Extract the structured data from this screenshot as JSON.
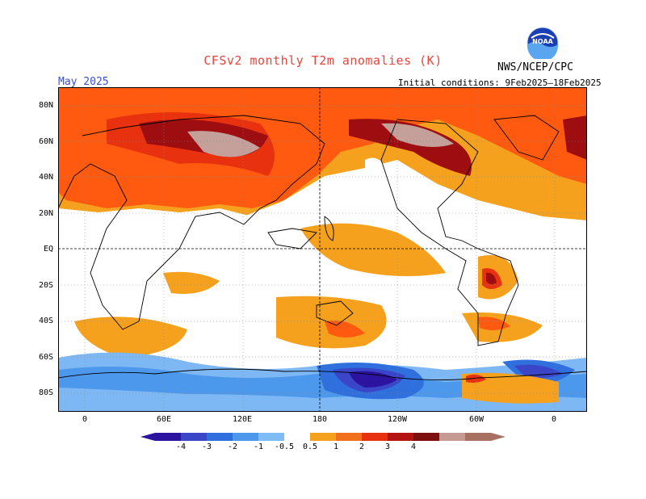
{
  "header": {
    "title": "CFSv2 monthly T2m anomalies (K)",
    "period": "May 2025",
    "initial_conditions": "Initial conditions: 9Feb2025–18Feb2025",
    "org": "NWS/NCEP/CPC",
    "logo_text": "NOAA"
  },
  "map": {
    "lat_labels": [
      "80N",
      "60N",
      "40N",
      "20N",
      "EQ",
      "20S",
      "40S",
      "60S",
      "80S"
    ],
    "lon_labels": [
      "0",
      "60E",
      "120E",
      "180",
      "120W",
      "60W",
      "0"
    ]
  },
  "colorbar": {
    "labels": [
      "-4",
      "-3",
      "-2",
      "-1",
      "-0.5",
      "0.5",
      "1",
      "2",
      "3",
      "4"
    ],
    "colors": [
      "#2d14a0",
      "#3a45c8",
      "#2f6fde",
      "#4c98ec",
      "#7dbcf5",
      "#ffffff",
      "#f5a11e",
      "#f0701e",
      "#e8320f",
      "#b51212",
      "#7e0f0f",
      "#c59a92",
      "#a87061"
    ]
  },
  "palette": {
    "neutral": "#ffffff",
    "warm_05": "#f5a11e",
    "warm_1": "#ff5a10",
    "warm_2": "#e8320f",
    "warm_3": "#9e0d10",
    "warm_4": "#c5a09a",
    "cool_05": "#7db8f5",
    "cool_1": "#4c98ec",
    "cool_2": "#2f6fde",
    "cool_3": "#3a45c8",
    "cool_4": "#2d14a0"
  }
}
